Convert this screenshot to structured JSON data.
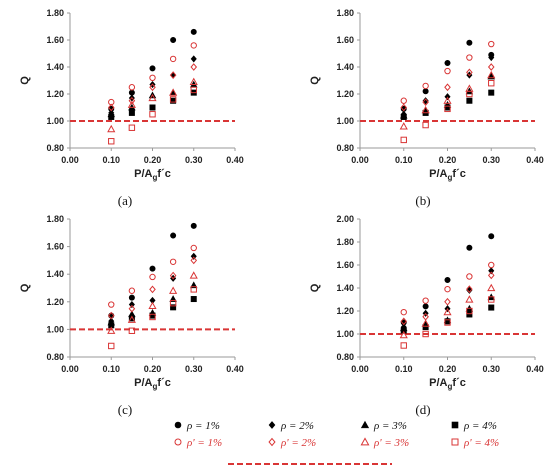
{
  "chart_data": [
    {
      "type": "scatter",
      "panel_label": "(a)",
      "xlabel": "P/A",
      "xlabel_sub": "g",
      "xlabel_tail": "f´c",
      "ylabel": "Q",
      "xlim": [
        0.0,
        0.4
      ],
      "ylim": [
        0.8,
        1.8
      ],
      "xticks": [
        "0.00",
        "0.10",
        "0.20",
        "0.30",
        "0.40"
      ],
      "yticks": [
        "0.80",
        "1.00",
        "1.20",
        "1.40",
        "1.60",
        "1.80"
      ],
      "reference_line": 1.0,
      "x": [
        0.1,
        0.15,
        0.2,
        0.25,
        0.3
      ],
      "series": [
        {
          "key": "rho1",
          "values": [
            1.09,
            1.21,
            1.39,
            1.6,
            1.66
          ]
        },
        {
          "key": "rho2",
          "values": [
            1.06,
            1.17,
            1.27,
            1.34,
            1.46
          ]
        },
        {
          "key": "rho3",
          "values": [
            1.05,
            1.1,
            1.19,
            1.21,
            1.27
          ]
        },
        {
          "key": "rho4",
          "values": [
            1.03,
            1.06,
            1.1,
            1.15,
            1.21
          ]
        },
        {
          "key": "rhop1",
          "values": [
            1.14,
            1.25,
            1.32,
            1.46,
            1.56
          ]
        },
        {
          "key": "rhop2",
          "values": [
            1.1,
            1.15,
            1.25,
            1.34,
            1.4
          ]
        },
        {
          "key": "rhop3",
          "values": [
            0.94,
            1.12,
            1.17,
            1.21,
            1.29
          ]
        },
        {
          "key": "rhop4",
          "values": [
            0.85,
            0.95,
            1.05,
            1.16,
            1.23
          ]
        }
      ]
    },
    {
      "type": "scatter",
      "panel_label": "(b)",
      "xlabel": "P/A",
      "xlabel_sub": "g",
      "xlabel_tail": "f´c",
      "ylabel": "Q",
      "xlim": [
        0.0,
        0.4
      ],
      "ylim": [
        0.8,
        1.8
      ],
      "xticks": [
        "0.00",
        "0.10",
        "0.20",
        "0.30",
        "0.40"
      ],
      "yticks": [
        "0.80",
        "1.00",
        "1.20",
        "1.40",
        "1.60",
        "1.80"
      ],
      "reference_line": 1.0,
      "x": [
        0.1,
        0.15,
        0.2,
        0.25,
        0.3
      ],
      "series": [
        {
          "key": "rho1",
          "values": [
            1.09,
            1.22,
            1.43,
            1.58,
            1.49
          ]
        },
        {
          "key": "rho2",
          "values": [
            1.05,
            1.15,
            1.18,
            1.34,
            1.47
          ]
        },
        {
          "key": "rho3",
          "values": [
            1.04,
            1.08,
            1.12,
            1.22,
            1.33
          ]
        },
        {
          "key": "rho4",
          "values": [
            1.03,
            1.06,
            1.1,
            1.15,
            1.21
          ]
        },
        {
          "key": "rhop1",
          "values": [
            1.15,
            1.26,
            1.37,
            1.47,
            1.57
          ]
        },
        {
          "key": "rhop2",
          "values": [
            1.1,
            1.14,
            1.25,
            1.36,
            1.4
          ]
        },
        {
          "key": "rhop3",
          "values": [
            0.96,
            1.08,
            1.15,
            1.24,
            1.34
          ]
        },
        {
          "key": "rhop4",
          "values": [
            0.86,
            0.97,
            1.09,
            1.2,
            1.28
          ]
        }
      ]
    },
    {
      "type": "scatter",
      "panel_label": "(c)",
      "xlabel": "P/A",
      "xlabel_sub": "g",
      "xlabel_tail": "f´c",
      "ylabel": "Q",
      "xlim": [
        0.0,
        0.4
      ],
      "ylim": [
        0.8,
        1.8
      ],
      "xticks": [
        "0.00",
        "0.10",
        "0.20",
        "0.30",
        "0.40"
      ],
      "yticks": [
        "0.80",
        "1.00",
        "1.20",
        "1.40",
        "1.60",
        "1.80"
      ],
      "reference_line": 1.0,
      "x": [
        0.1,
        0.15,
        0.2,
        0.25,
        0.3
      ],
      "series": [
        {
          "key": "rho1",
          "values": [
            1.1,
            1.23,
            1.44,
            1.68,
            1.75
          ]
        },
        {
          "key": "rho2",
          "values": [
            1.06,
            1.18,
            1.21,
            1.37,
            1.53
          ]
        },
        {
          "key": "rho3",
          "values": [
            1.05,
            1.11,
            1.12,
            1.22,
            1.32
          ]
        },
        {
          "key": "rho4",
          "values": [
            1.03,
            1.08,
            1.1,
            1.16,
            1.22
          ]
        },
        {
          "key": "rhop1",
          "values": [
            1.18,
            1.28,
            1.38,
            1.49,
            1.59
          ]
        },
        {
          "key": "rhop2",
          "values": [
            1.1,
            1.15,
            1.29,
            1.39,
            1.5
          ]
        },
        {
          "key": "rhop3",
          "values": [
            0.99,
            1.07,
            1.17,
            1.28,
            1.39
          ]
        },
        {
          "key": "rhop4",
          "values": [
            0.88,
            0.99,
            1.09,
            1.19,
            1.29
          ]
        }
      ]
    },
    {
      "type": "scatter",
      "panel_label": "(d)",
      "xlabel": "P/A",
      "xlabel_sub": "g",
      "xlabel_tail": "f´c",
      "ylabel": "Q",
      "xlim": [
        0.0,
        0.4
      ],
      "ylim": [
        0.8,
        2.0
      ],
      "xticks": [
        "0.00",
        "0.10",
        "0.20",
        "0.30",
        "0.40"
      ],
      "yticks": [
        "0.80",
        "1.00",
        "1.20",
        "1.40",
        "1.60",
        "1.80",
        "2.00"
      ],
      "reference_line": 1.0,
      "x": [
        0.1,
        0.15,
        0.2,
        0.25,
        0.3
      ],
      "series": [
        {
          "key": "rho1",
          "values": [
            1.1,
            1.24,
            1.47,
            1.75,
            1.85
          ]
        },
        {
          "key": "rho2",
          "values": [
            1.06,
            1.18,
            1.22,
            1.38,
            1.55
          ]
        },
        {
          "key": "rho3",
          "values": [
            1.05,
            1.09,
            1.12,
            1.22,
            1.32
          ]
        },
        {
          "key": "rho4",
          "values": [
            1.03,
            1.06,
            1.11,
            1.17,
            1.23
          ]
        },
        {
          "key": "rhop1",
          "values": [
            1.19,
            1.29,
            1.39,
            1.5,
            1.6
          ]
        },
        {
          "key": "rhop2",
          "values": [
            1.11,
            1.15,
            1.28,
            1.39,
            1.51
          ]
        },
        {
          "key": "rhop3",
          "values": [
            0.99,
            1.09,
            1.19,
            1.3,
            1.4
          ]
        },
        {
          "key": "rhop4",
          "values": [
            0.9,
            1.0,
            1.1,
            1.2,
            1.3
          ]
        }
      ]
    }
  ],
  "legend": {
    "items": [
      {
        "key": "rho1",
        "label": "ρ = 1%",
        "marker": "circle-filled",
        "color": "#000000"
      },
      {
        "key": "rho2",
        "label": "ρ = 2%",
        "marker": "diamond-filled",
        "color": "#000000"
      },
      {
        "key": "rho3",
        "label": "ρ = 3%",
        "marker": "triangle-filled",
        "color": "#000000"
      },
      {
        "key": "rho4",
        "label": "ρ = 4%",
        "marker": "square-filled",
        "color": "#000000"
      },
      {
        "key": "rhop1",
        "label": "ρ' = 1%",
        "marker": "circle-open",
        "color": "#d93535"
      },
      {
        "key": "rhop2",
        "label": "ρ' = 2%",
        "marker": "diamond-open",
        "color": "#d93535"
      },
      {
        "key": "rhop3",
        "label": "ρ' = 3%",
        "marker": "triangle-open",
        "color": "#d93535"
      },
      {
        "key": "rhop4",
        "label": "ρ' = 4%",
        "marker": "square-open",
        "color": "#d93535"
      }
    ],
    "reference_line_color": "#d93535"
  },
  "colors": {
    "filled": "#000000",
    "open": "#d93535",
    "axis": "#9a9a9a"
  }
}
